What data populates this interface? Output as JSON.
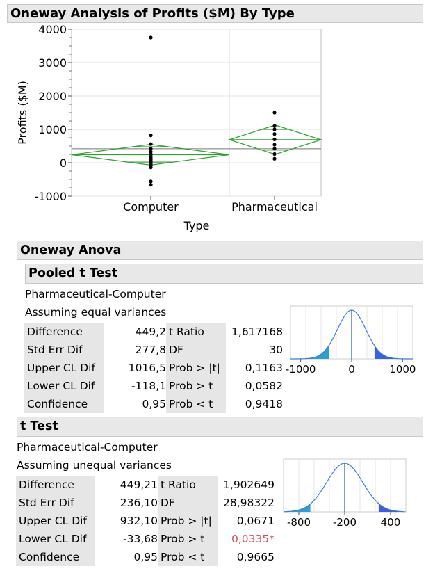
{
  "title": "Oneway Analysis of Profits ($M) By Type",
  "chart_data": {
    "type": "scatter",
    "xlabel": "Type",
    "ylabel": "Profits ($M)",
    "ylim": [
      -1000,
      4000
    ],
    "yticks": [
      4000,
      3000,
      2000,
      1000,
      0,
      -1000
    ],
    "categories": [
      "Computer",
      "Pharmaceutical"
    ],
    "grand_mean": 420,
    "groups": [
      {
        "name": "Computer",
        "points": [
          3750,
          820,
          560,
          420,
          330,
          260,
          200,
          150,
          100,
          60,
          20,
          -30,
          -80,
          -140,
          -560,
          -660
        ],
        "mean": 240,
        "upper_ci": 550,
        "lower_ci": -70,
        "upper_quantile": 480,
        "lower_quantile": 20
      },
      {
        "name": "Pharmaceutical",
        "points": [
          1500,
          1100,
          1000,
          860,
          700,
          540,
          420,
          260,
          120
        ],
        "mean": 690,
        "upper_ci": 1130,
        "lower_ci": 250,
        "upper_quantile": 1000,
        "lower_quantile": 380
      }
    ]
  },
  "anova": {
    "title": "Oneway Anova",
    "pooled": {
      "title": "Pooled t Test",
      "line1": "Pharmaceutical-Computer",
      "line2": "Assuming equal variances",
      "rows": [
        {
          "label": "Difference",
          "value": "449,2",
          "label2": "t Ratio",
          "value2": "1,617168"
        },
        {
          "label": "Std Err Dif",
          "value": "277,8",
          "label2": "DF",
          "value2": "30"
        },
        {
          "label": "Upper CL Dif",
          "value": "1016,5",
          "label2": "Prob > |t|",
          "value2": "0,1163"
        },
        {
          "label": "Lower CL Dif",
          "value": "-118,1",
          "label2": "Prob > t",
          "value2": "0,0582"
        },
        {
          "label": "Confidence",
          "value": "0,95",
          "label2": "Prob < t",
          "value2": "0,9418"
        }
      ],
      "dist": {
        "ticks": [
          "-1000",
          "0",
          "1000"
        ],
        "tick_values": [
          -1000,
          0,
          1000
        ],
        "range": [
          -1200,
          1200
        ],
        "sd": 277.8,
        "diff": 449.2
      }
    },
    "ttest": {
      "title": "t Test",
      "line1": "Pharmaceutical-Computer",
      "line2": "Assuming unequal variances",
      "rows": [
        {
          "label": "Difference",
          "value": "449,21",
          "label2": "t Ratio",
          "value2": "1,902649"
        },
        {
          "label": "Std Err Dif",
          "value": "236,10",
          "label2": "DF",
          "value2": "28,98322"
        },
        {
          "label": "Upper CL Dif",
          "value": "932,10",
          "label2": "Prob > |t|",
          "value2": "0,0671"
        },
        {
          "label": "Lower CL Dif",
          "value": "-33,68",
          "label2": "Prob > t",
          "value2": "0,0335*"
        },
        {
          "label": "Confidence",
          "value": "0,95",
          "label2": "Prob < t",
          "value2": "0,9665"
        }
      ],
      "dist": {
        "ticks": [
          "-800",
          "-200",
          "400"
        ],
        "tick_values": [
          -800,
          -200,
          400
        ],
        "range": [
          -1000,
          600
        ],
        "center": -200,
        "sd": 236.1,
        "diff": 449.21
      }
    }
  }
}
